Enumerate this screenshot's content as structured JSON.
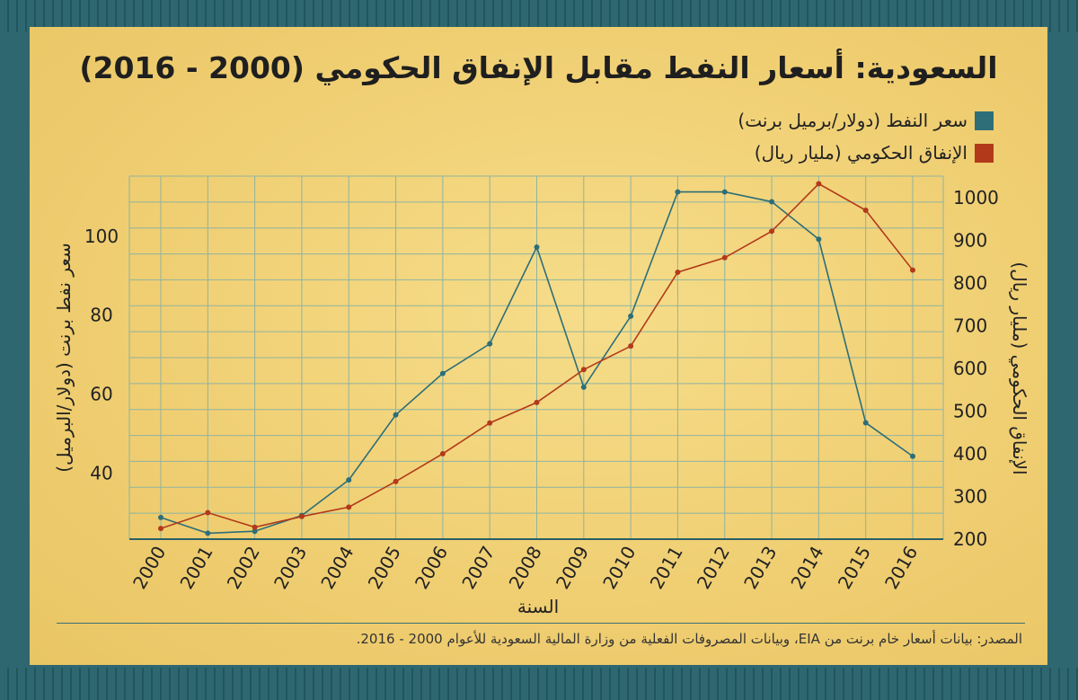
{
  "title": "السعودية: أسعار النفط مقابل الإنفاق الحكومي (2000 - 2016)",
  "source": "المصدر: بيانات أسعار خام برنت من EIA، وبيانات المصروفات الفعلية من وزارة المالية السعودية للأعوام 2000 - 2016.",
  "colors": {
    "oil": "#2e6e78",
    "spending": "#b23a1b",
    "grid": "#8fb3a0",
    "background": "#f3d67d",
    "frame": "#2e6770"
  },
  "chart_data": {
    "type": "line",
    "title": "السعودية: أسعار النفط مقابل الإنفاق الحكومي (2000 - 2016)",
    "xlabel": "السنة",
    "ylabel_left": "سعر نفط برنت (دولار/البرميل)",
    "ylabel_right": "الإنفاق الحكومي (مليار ريال)",
    "x": [
      "2000",
      "2001",
      "2002",
      "2003",
      "2004",
      "2005",
      "2006",
      "2007",
      "2008",
      "2009",
      "2010",
      "2011",
      "2012",
      "2013",
      "2014",
      "2015",
      "2016"
    ],
    "ylim_left": [
      23,
      115
    ],
    "ylim_right": [
      200,
      1050
    ],
    "yticks_left": [
      40,
      60,
      80,
      100
    ],
    "yticks_right": [
      200,
      300,
      400,
      500,
      600,
      700,
      800,
      900,
      1000
    ],
    "legend_position": "top-right",
    "series": [
      {
        "name": "سعر النفط (دولار/برميل برنت)",
        "axis": "left",
        "color": "#2e6e78",
        "values": [
          28.5,
          24.5,
          25,
          29,
          38,
          54.5,
          65,
          72.5,
          97,
          61.5,
          79.5,
          111,
          111,
          108.5,
          99,
          52.5,
          44
        ]
      },
      {
        "name": "الإنفاق الحكومي (مليار ريال)",
        "axis": "right",
        "color": "#b23a1b",
        "values": [
          225,
          262,
          228,
          253,
          275,
          335,
          400,
          472,
          520,
          597,
          652,
          825,
          859,
          921,
          1032,
          970,
          830
        ]
      }
    ]
  }
}
